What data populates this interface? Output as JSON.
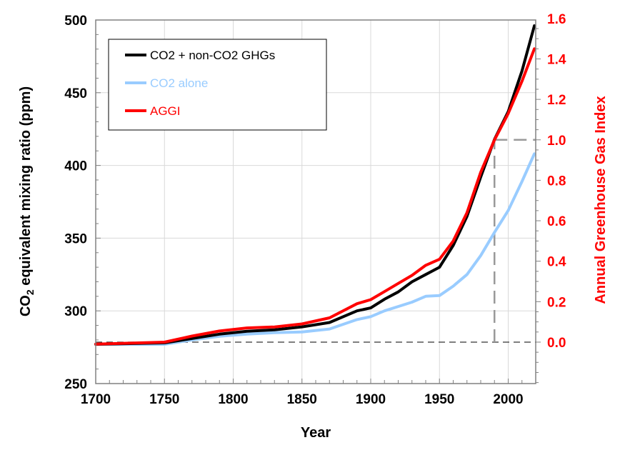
{
  "chart_data": {
    "type": "line",
    "title": "",
    "xlabel": "Year",
    "ylabel": "CO2 equivalent mixing ratio (ppm)",
    "ylabel_parts": {
      "pre": "CO",
      "sub": "2",
      "post": " equivalent mixing ratio (ppm)"
    },
    "y2label": "Annual Greenhouse Gas Index",
    "xlim": [
      1700,
      2020
    ],
    "ylim": [
      250,
      500
    ],
    "y2lim_mapping": {
      "index_0_ppm": 278.5,
      "index_1_ppm": 417.6
    },
    "xticks": [
      "1700",
      "1750",
      "1800",
      "1850",
      "1900",
      "1950",
      "2000"
    ],
    "yticks": [
      "250",
      "300",
      "350",
      "400",
      "450",
      "500"
    ],
    "y2ticks": [
      "0.0",
      "0.2",
      "0.4",
      "0.6",
      "0.8",
      "1.0",
      "1.2",
      "1.4",
      "1.6"
    ],
    "grid": true,
    "legend_position": "top-left",
    "reference_lines": {
      "aggi_zero": 0.0,
      "aggi_one": 1.0,
      "aggi_one_year": 1990
    },
    "series": [
      {
        "name": "CO2 + non-CO2 GHGs",
        "axis": "left",
        "color": "#000000",
        "x": [
          1700,
          1750,
          1770,
          1790,
          1810,
          1830,
          1850,
          1870,
          1890,
          1900,
          1910,
          1920,
          1930,
          1940,
          1950,
          1960,
          1970,
          1980,
          1990,
          2000,
          2010,
          2019
        ],
        "y": [
          277,
          278,
          281,
          284,
          286,
          287,
          289,
          292,
          300,
          302,
          308,
          313,
          320,
          325,
          330,
          345,
          365,
          392,
          418,
          437,
          465,
          496
        ]
      },
      {
        "name": "CO2 alone",
        "axis": "left",
        "color": "#99ccff",
        "x": [
          1700,
          1750,
          1770,
          1790,
          1810,
          1830,
          1850,
          1870,
          1890,
          1900,
          1910,
          1920,
          1930,
          1940,
          1950,
          1960,
          1970,
          1980,
          1990,
          2000,
          2010,
          2019
        ],
        "y": [
          277,
          277,
          280,
          282.5,
          284,
          285,
          285.5,
          287.5,
          294,
          296,
          300,
          303,
          306,
          310,
          310.5,
          317,
          325,
          338,
          354,
          369,
          389,
          408
        ]
      },
      {
        "name": "AGGI",
        "axis": "right",
        "color": "#ff0000",
        "x": [
          1700,
          1750,
          1770,
          1790,
          1810,
          1830,
          1850,
          1870,
          1890,
          1900,
          1910,
          1920,
          1930,
          1940,
          1950,
          1960,
          1970,
          1980,
          1990,
          2000,
          2010,
          2019
        ],
        "y": [
          -0.01,
          0.0,
          0.03,
          0.055,
          0.07,
          0.075,
          0.09,
          0.12,
          0.19,
          0.21,
          0.25,
          0.29,
          0.33,
          0.38,
          0.41,
          0.5,
          0.64,
          0.84,
          1.0,
          1.13,
          1.29,
          1.45
        ]
      }
    ]
  }
}
